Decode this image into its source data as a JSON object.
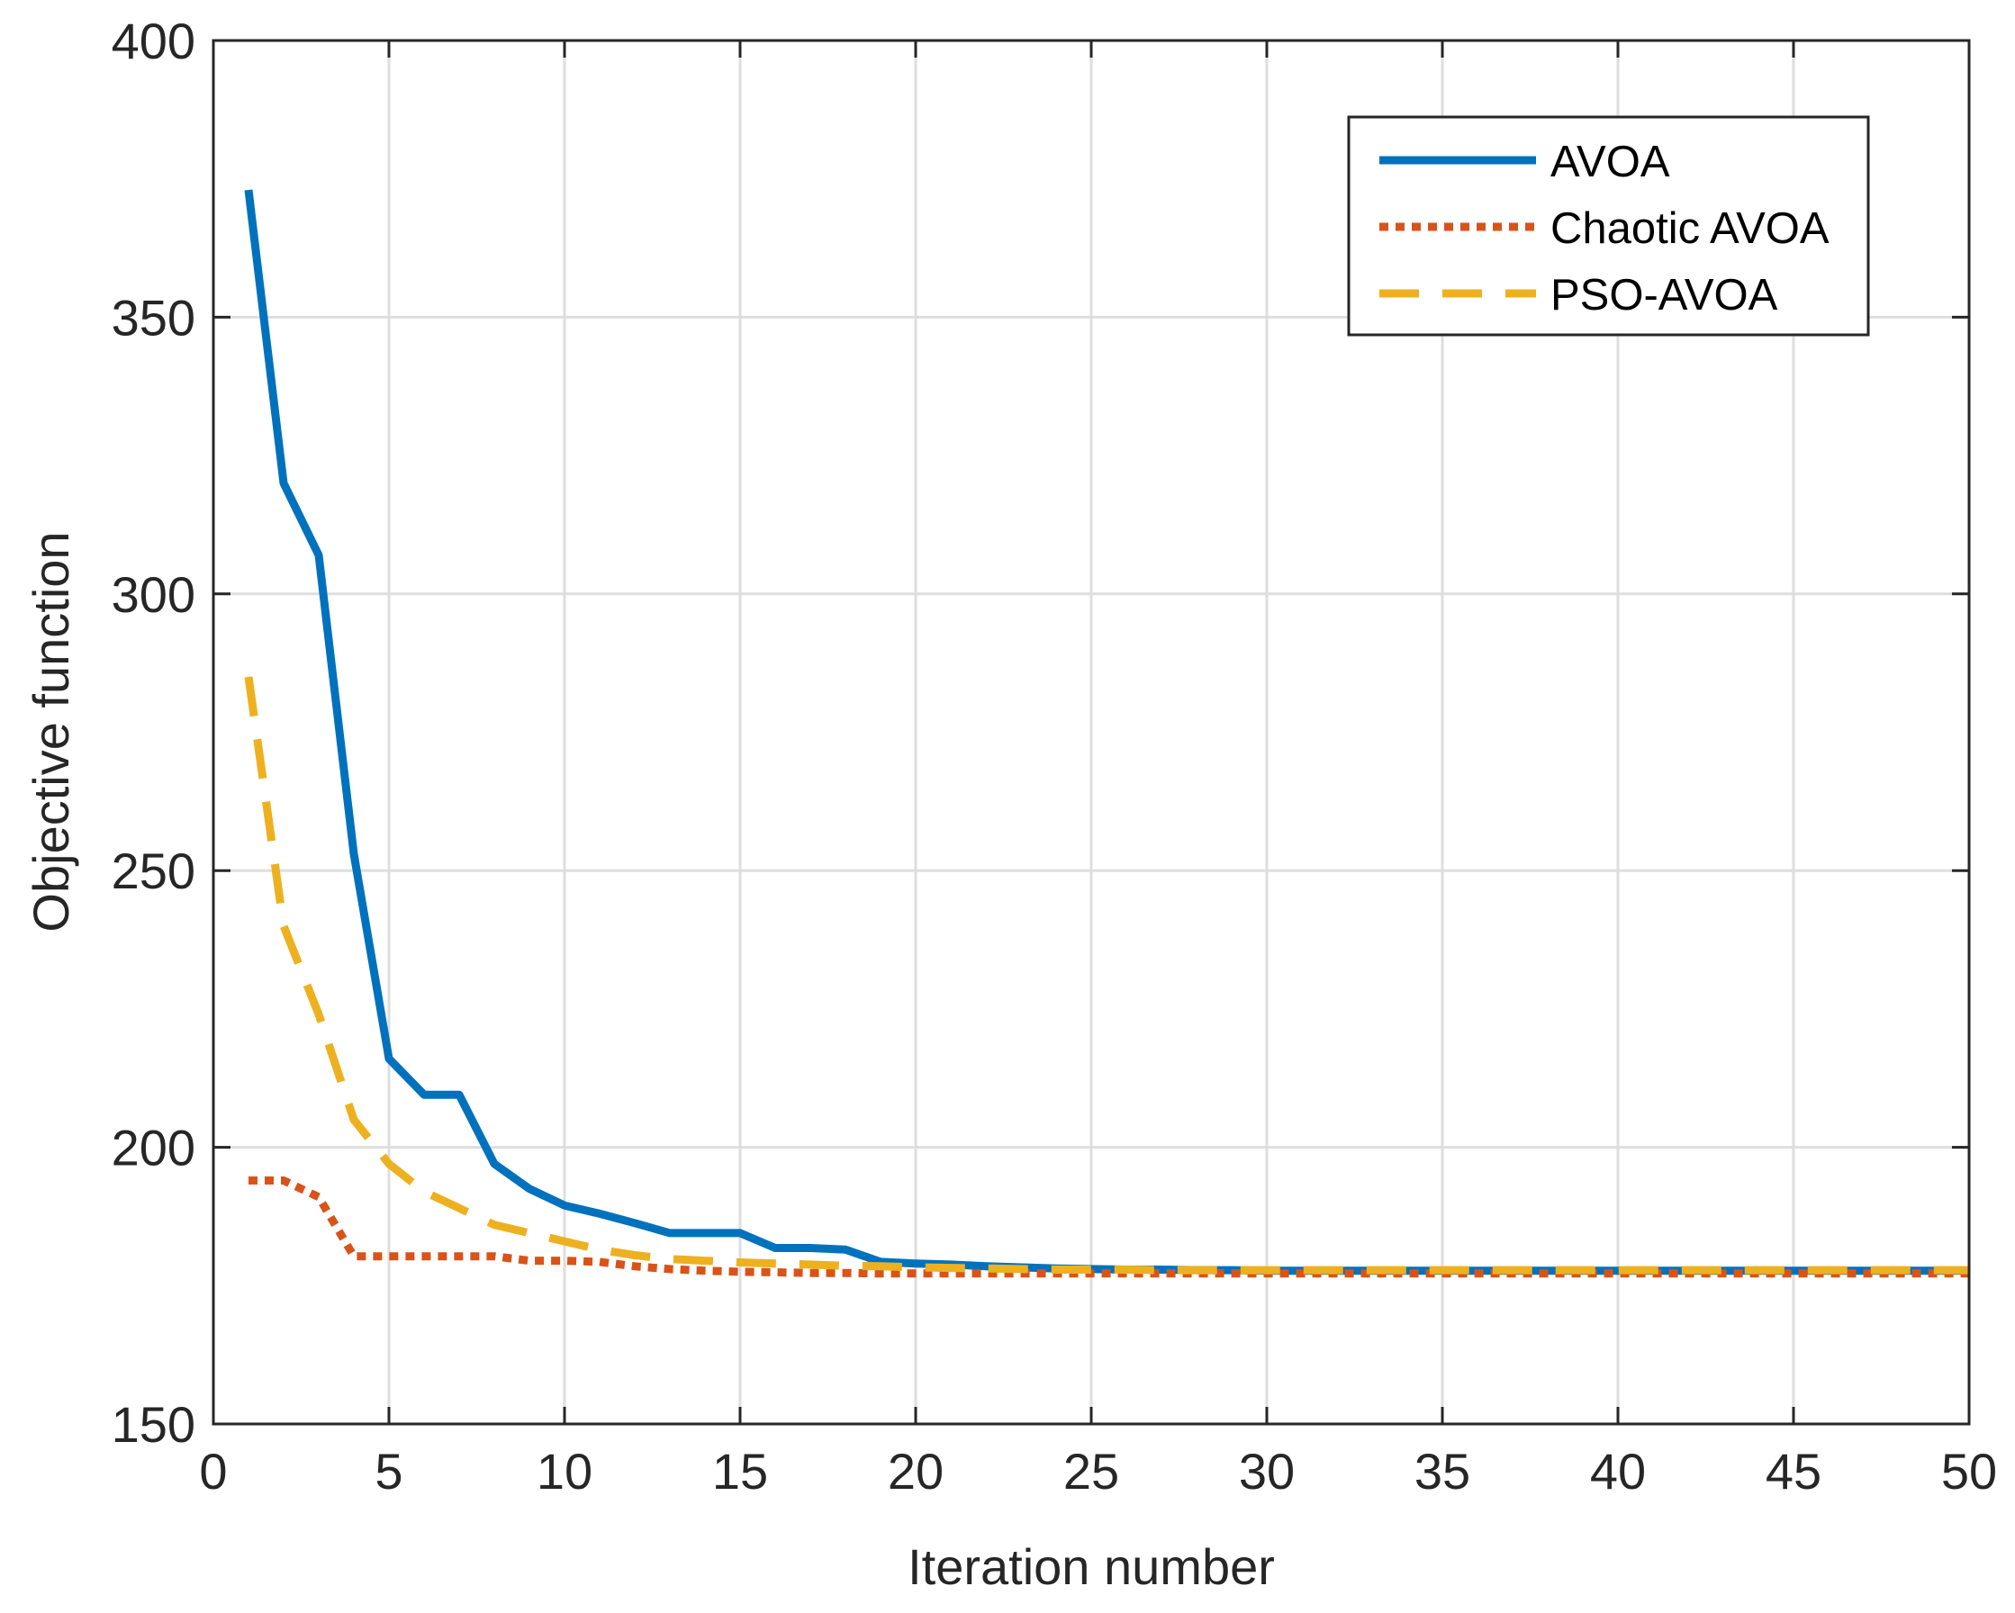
{
  "chart_data": {
    "type": "line",
    "title": "",
    "xlabel": "Iteration number",
    "ylabel": "Objective function",
    "xlim": [
      0,
      50
    ],
    "ylim": [
      150,
      400
    ],
    "xticks": [
      0,
      5,
      10,
      15,
      20,
      25,
      30,
      35,
      40,
      45,
      50
    ],
    "yticks": [
      150,
      200,
      250,
      300,
      350,
      400
    ],
    "grid": true,
    "legend_position": "top-right",
    "x": [
      1,
      2,
      3,
      4,
      5,
      6,
      7,
      8,
      9,
      10,
      11,
      12,
      13,
      14,
      15,
      16,
      17,
      18,
      19,
      20,
      21,
      22,
      23,
      24,
      25,
      26,
      27,
      28,
      29,
      30,
      31,
      32,
      33,
      34,
      35,
      36,
      37,
      38,
      39,
      40,
      41,
      42,
      43,
      44,
      45,
      46,
      47,
      48,
      49,
      50
    ],
    "series": [
      {
        "name": "AVOA",
        "color": "#0072BD",
        "style": "solid",
        "values": [
          373,
          320,
          307,
          253,
          216,
          209.5,
          209.5,
          197,
          192.5,
          189.5,
          188,
          186.3,
          184.5,
          184.5,
          184.5,
          181.8,
          181.8,
          181.5,
          179.3,
          179,
          178.8,
          178.5,
          178.3,
          178.1,
          178,
          177.9,
          177.9,
          177.8,
          177.8,
          177.7,
          177.7,
          177.7,
          177.7,
          177.7,
          177.7,
          177.7,
          177.7,
          177.7,
          177.7,
          177.7,
          177.7,
          177.7,
          177.7,
          177.7,
          177.7,
          177.7,
          177.7,
          177.7,
          177.7,
          177.7
        ]
      },
      {
        "name": "Chaotic AVOA",
        "color": "#D95319",
        "style": "dotted",
        "values": [
          194,
          194,
          191,
          180.3,
          180.3,
          180.3,
          180.3,
          180.3,
          179.5,
          179.5,
          179.3,
          178.5,
          178,
          177.7,
          177.5,
          177.4,
          177.3,
          177.3,
          177.2,
          177.2,
          177.2,
          177.2,
          177.2,
          177.2,
          177.2,
          177.2,
          177.2,
          177.2,
          177.2,
          177.2,
          177.2,
          177.2,
          177.2,
          177.2,
          177.2,
          177.2,
          177.2,
          177.2,
          177.2,
          177.2,
          177.2,
          177.2,
          177.2,
          177.2,
          177.2,
          177.2,
          177.2,
          177.2,
          177.2,
          177.2
        ]
      },
      {
        "name": "PSO-AVOA",
        "color": "#EDB120",
        "style": "dashed",
        "values": [
          285,
          240,
          224,
          205,
          197,
          192,
          189,
          186,
          184.5,
          183,
          181.5,
          180.5,
          179.8,
          179.5,
          179.2,
          179,
          178.8,
          178.6,
          178.5,
          178.3,
          178.2,
          178.1,
          178,
          177.9,
          177.9,
          177.9,
          177.8,
          177.8,
          177.8,
          177.8,
          177.8,
          177.8,
          177.8,
          177.8,
          177.8,
          177.8,
          177.8,
          177.8,
          177.8,
          177.8,
          177.8,
          177.8,
          177.8,
          177.8,
          177.8,
          177.8,
          177.8,
          177.8,
          177.8,
          177.8
        ]
      }
    ]
  }
}
